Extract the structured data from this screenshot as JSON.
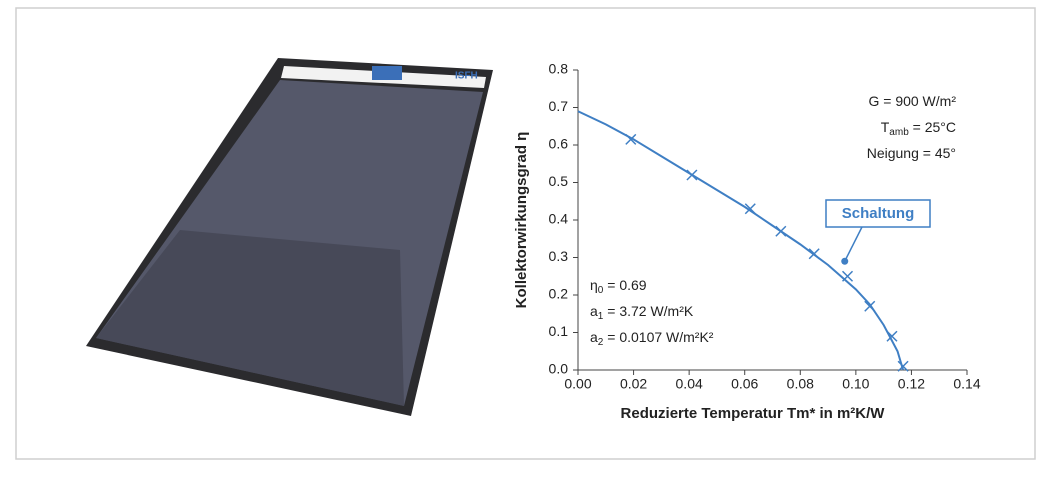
{
  "photo": {
    "logo_text": "ISFH"
  },
  "chart_data": {
    "type": "line",
    "xlabel": "Reduzierte Temperatur Tm* in m²K/W",
    "ylabel": "Kollektorwirkungsgrad η",
    "xlim": [
      0,
      0.14
    ],
    "ylim": [
      0,
      0.8
    ],
    "xticks": [
      {
        "value": 0,
        "label": "0.00"
      },
      {
        "value": 0.02,
        "label": "0.02"
      },
      {
        "value": 0.04,
        "label": "0.04"
      },
      {
        "value": 0.06,
        "label": "0.06"
      },
      {
        "value": 0.08,
        "label": "0.08"
      },
      {
        "value": 0.1,
        "label": "0.10"
      },
      {
        "value": 0.12,
        "label": "0.12"
      },
      {
        "value": 0.14,
        "label": "0.14"
      }
    ],
    "yticks": [
      {
        "value": 0,
        "label": "0.0"
      },
      0.1,
      0.2,
      0.3,
      0.4,
      0.5,
      0.6,
      0.7,
      0.8
    ],
    "series": [
      {
        "style": "line",
        "color": "#3f7fc4",
        "x": [
          0,
          0.01,
          0.02,
          0.03,
          0.04,
          0.05,
          0.06,
          0.07,
          0.08,
          0.09,
          0.1,
          0.105,
          0.11,
          0.115,
          0.117
        ],
        "values": [
          0.69,
          0.655,
          0.615,
          0.57,
          0.525,
          0.48,
          0.435,
          0.385,
          0.335,
          0.28,
          0.215,
          0.175,
          0.12,
          0.05,
          0.0
        ]
      },
      {
        "style": "marker",
        "color": "#3f7fc4",
        "x": [
          0.019,
          0.041,
          0.062,
          0.073,
          0.085,
          0.097,
          0.105,
          0.113,
          0.117
        ],
        "values": [
          0.615,
          0.52,
          0.43,
          0.37,
          0.31,
          0.25,
          0.17,
          0.09,
          0.01
        ]
      }
    ],
    "conditions": [
      {
        "base": "G = 900 W/m²"
      },
      {
        "base": "T",
        "sub": "amb",
        "rest": " = 25°C"
      },
      {
        "base": "Neigung = 45°"
      }
    ],
    "parameters": [
      {
        "base": "η",
        "sub": "0",
        "rest": " = 0.69"
      },
      {
        "base": "a",
        "sub": "1",
        "rest": " = 3.72 W/m²K"
      },
      {
        "base": "a",
        "sub": "2",
        "rest": " = 0.0107 W/m²K²"
      }
    ],
    "callout": {
      "text": "Schaltung",
      "x": 0.096,
      "y": 0.29
    }
  }
}
